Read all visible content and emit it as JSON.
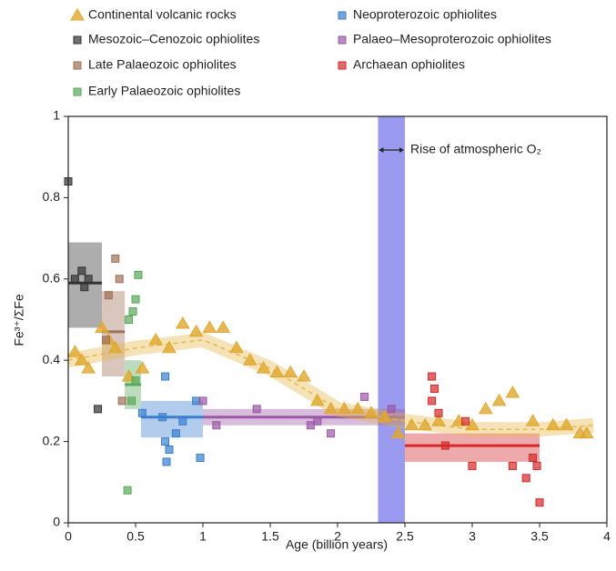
{
  "chart_data": {
    "type": "scatter",
    "xlabel": "Age (billion years)",
    "ylabel": "Fe³⁺/ΣFe",
    "xlim": [
      0,
      4
    ],
    "xticks": [
      0,
      0.5,
      1,
      1.5,
      2,
      2.5,
      3,
      3.5,
      4
    ],
    "ylim": [
      0,
      1
    ],
    "yticks": [
      0,
      0.2,
      0.4,
      0.6,
      0.8,
      1
    ],
    "highlight": {
      "x": [
        2.3,
        2.5
      ],
      "color": "#9a9af0",
      "label": "Rise of atmospheric O₂"
    },
    "trend": {
      "color": "#e6b94a",
      "x": [
        0,
        0.5,
        1,
        1.5,
        2,
        2.5,
        3,
        3.5,
        3.9
      ],
      "values": [
        0.4,
        0.43,
        0.45,
        0.38,
        0.28,
        0.25,
        0.23,
        0.23,
        0.24
      ]
    },
    "series": [
      {
        "name": "Continental volcanic rocks",
        "color": "#e0a82e",
        "marker": "triangle",
        "x": [
          0.05,
          0.1,
          0.15,
          0.25,
          0.3,
          0.35,
          0.45,
          0.55,
          0.65,
          0.75,
          0.85,
          0.95,
          1.05,
          1.15,
          1.25,
          1.35,
          1.45,
          1.55,
          1.65,
          1.75,
          1.85,
          1.95,
          2.05,
          2.15,
          2.25,
          2.35,
          2.45,
          2.55,
          2.65,
          2.75,
          2.9,
          3.0,
          3.1,
          3.2,
          3.3,
          3.45,
          3.6,
          3.7,
          3.8,
          3.85
        ],
        "values": [
          0.42,
          0.4,
          0.38,
          0.48,
          0.45,
          0.43,
          0.36,
          0.38,
          0.45,
          0.43,
          0.49,
          0.47,
          0.48,
          0.48,
          0.43,
          0.4,
          0.38,
          0.37,
          0.37,
          0.36,
          0.3,
          0.28,
          0.28,
          0.28,
          0.27,
          0.26,
          0.22,
          0.24,
          0.24,
          0.25,
          0.25,
          0.24,
          0.28,
          0.3,
          0.32,
          0.25,
          0.24,
          0.24,
          0.22,
          0.22
        ]
      },
      {
        "name": "Mesozoic–Cenozoic ophiolites",
        "color": "#333333",
        "marker": "square",
        "x": [
          0.0,
          0.05,
          0.1,
          0.12,
          0.15,
          0.22
        ],
        "values": [
          0.84,
          0.6,
          0.62,
          0.58,
          0.6,
          0.28
        ],
        "band": {
          "x": [
            0,
            0.25
          ],
          "mean": 0.59,
          "low": 0.48,
          "high": 0.69
        }
      },
      {
        "name": "Late Palaeozoic ophiolites",
        "color": "#a0705a",
        "marker": "square",
        "x": [
          0.28,
          0.3,
          0.35,
          0.38,
          0.4
        ],
        "values": [
          0.45,
          0.56,
          0.65,
          0.6,
          0.3
        ],
        "band": {
          "x": [
            0.25,
            0.42
          ],
          "mean": 0.47,
          "low": 0.36,
          "high": 0.57
        }
      },
      {
        "name": "Early Palaeozoic ophiolites",
        "color": "#5aa85a",
        "marker": "square",
        "x": [
          0.44,
          0.45,
          0.47,
          0.48,
          0.5,
          0.5,
          0.52
        ],
        "values": [
          0.08,
          0.5,
          0.3,
          0.52,
          0.55,
          0.35,
          0.61
        ],
        "band": {
          "x": [
            0.42,
            0.54
          ],
          "mean": 0.34,
          "low": 0.28,
          "high": 0.4
        }
      },
      {
        "name": "Neoproterozoic ophiolites",
        "color": "#3b7fcf",
        "marker": "square",
        "x": [
          0.55,
          0.7,
          0.72,
          0.72,
          0.73,
          0.75,
          0.8,
          0.85,
          0.95,
          0.98
        ],
        "values": [
          0.27,
          0.26,
          0.2,
          0.36,
          0.15,
          0.18,
          0.22,
          0.25,
          0.3,
          0.16
        ],
        "band": {
          "x": [
            0.54,
            1.0
          ],
          "mean": 0.26,
          "low": 0.21,
          "high": 0.3
        }
      },
      {
        "name": "Palaeo–Mesoproterozoic ophiolites",
        "color": "#9b59a6",
        "marker": "square",
        "x": [
          1.0,
          1.1,
          1.4,
          1.8,
          1.85,
          1.95,
          2.2,
          2.4
        ],
        "values": [
          0.3,
          0.24,
          0.28,
          0.24,
          0.25,
          0.22,
          0.31,
          0.28
        ],
        "band": {
          "x": [
            1.0,
            2.5
          ],
          "mean": 0.26,
          "low": 0.24,
          "high": 0.28
        }
      },
      {
        "name": "Archaean ophiolites",
        "color": "#d42a2a",
        "marker": "square",
        "x": [
          2.7,
          2.7,
          2.72,
          2.75,
          2.8,
          2.95,
          3.0,
          3.3,
          3.4,
          3.45,
          3.48,
          3.5
        ],
        "values": [
          0.36,
          0.3,
          0.33,
          0.27,
          0.19,
          0.25,
          0.14,
          0.14,
          0.11,
          0.16,
          0.14,
          0.05
        ],
        "band": {
          "x": [
            2.5,
            3.5
          ],
          "mean": 0.19,
          "low": 0.15,
          "high": 0.22
        }
      }
    ]
  }
}
